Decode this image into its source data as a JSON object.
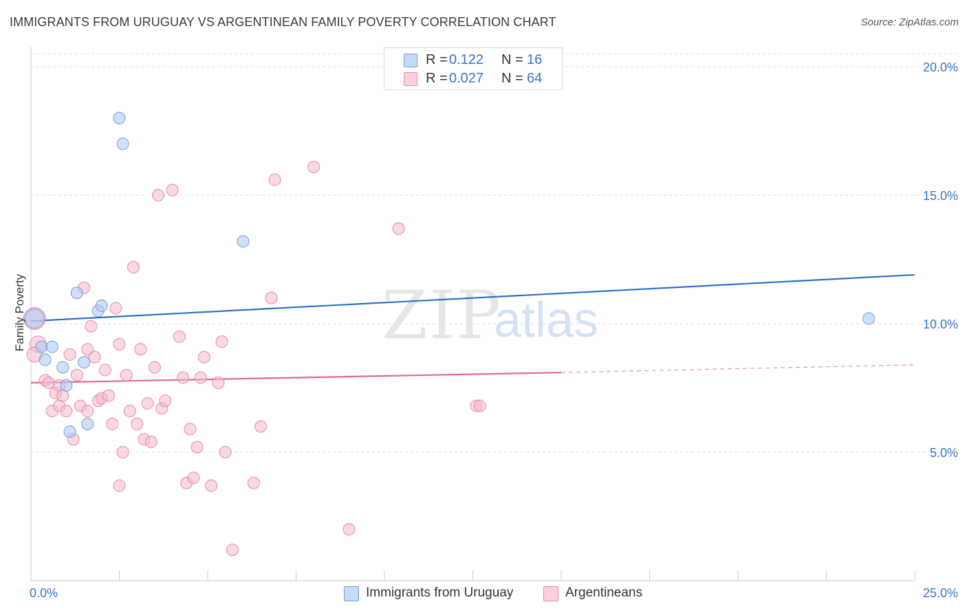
{
  "title": "IMMIGRANTS FROM URUGUAY VS ARGENTINEAN FAMILY POVERTY CORRELATION CHART",
  "source": "Source: ZipAtlas.com",
  "watermark": {
    "zip": "ZIP",
    "atlas": "atlas"
  },
  "legend": {
    "r_label": "R =",
    "n_label": "N =",
    "rows": [
      {
        "r": "0.122",
        "n": "16",
        "color": "#aac8f0"
      },
      {
        "r": "0.027",
        "n": "64",
        "color": "#f7b8cc"
      }
    ]
  },
  "bottom_legend": [
    {
      "label": "Immigrants from Uruguay",
      "color": "#aac8f0"
    },
    {
      "label": "Argentineans",
      "color": "#f7b8cc"
    }
  ],
  "chart_data": {
    "type": "scatter",
    "title": "IMMIGRANTS FROM URUGUAY VS ARGENTINEAN FAMILY POVERTY CORRELATION CHART",
    "xlabel": "",
    "ylabel": "Family Poverty",
    "xlim": [
      0,
      25
    ],
    "ylim": [
      0,
      20
    ],
    "x_tick_labels": [
      "0.0%",
      "25.0%"
    ],
    "y_ticks": [
      5,
      10,
      15,
      20
    ],
    "y_tick_labels": [
      "5.0%",
      "10.0%",
      "15.0%",
      "20.0%"
    ],
    "grid": true,
    "series": [
      {
        "name": "Immigrants from Uruguay",
        "color": "#aac8f0",
        "edge": "#6f9fdc",
        "line_color": "#2e6fce",
        "trend": {
          "x": [
            0,
            25
          ],
          "y": [
            10.1,
            11.9
          ]
        },
        "points": [
          {
            "x": 0.1,
            "y": 10.2,
            "s": 14
          },
          {
            "x": 0.3,
            "y": 9.1
          },
          {
            "x": 0.4,
            "y": 8.6
          },
          {
            "x": 0.6,
            "y": 9.1
          },
          {
            "x": 0.9,
            "y": 8.3
          },
          {
            "x": 1.0,
            "y": 7.6
          },
          {
            "x": 1.1,
            "y": 5.8
          },
          {
            "x": 1.3,
            "y": 11.2
          },
          {
            "x": 1.5,
            "y": 8.5
          },
          {
            "x": 1.6,
            "y": 6.1
          },
          {
            "x": 1.9,
            "y": 10.5
          },
          {
            "x": 2.0,
            "y": 10.7
          },
          {
            "x": 2.5,
            "y": 18.0
          },
          {
            "x": 2.6,
            "y": 17.0
          },
          {
            "x": 6.0,
            "y": 13.2
          },
          {
            "x": 23.7,
            "y": 10.2
          }
        ]
      },
      {
        "name": "Argentineans",
        "color": "#f7b8cc",
        "edge": "#e58aa8",
        "line_color": "#e06890",
        "trend": {
          "x": [
            0,
            15
          ],
          "y": [
            7.7,
            8.1
          ]
        },
        "trend_dashed": {
          "x": [
            15,
            25
          ],
          "y": [
            8.1,
            8.4
          ]
        },
        "points": [
          {
            "x": 0.1,
            "y": 10.2,
            "s": 16
          },
          {
            "x": 0.2,
            "y": 9.2,
            "s": 12
          },
          {
            "x": 0.1,
            "y": 8.8,
            "s": 11
          },
          {
            "x": 0.4,
            "y": 7.8
          },
          {
            "x": 0.5,
            "y": 7.7
          },
          {
            "x": 0.6,
            "y": 6.6
          },
          {
            "x": 0.7,
            "y": 7.3
          },
          {
            "x": 0.8,
            "y": 6.8
          },
          {
            "x": 0.8,
            "y": 7.6
          },
          {
            "x": 0.9,
            "y": 7.2
          },
          {
            "x": 1.0,
            "y": 6.6
          },
          {
            "x": 1.1,
            "y": 8.8
          },
          {
            "x": 1.2,
            "y": 5.5
          },
          {
            "x": 1.3,
            "y": 8.0
          },
          {
            "x": 1.4,
            "y": 6.8
          },
          {
            "x": 1.5,
            "y": 11.4
          },
          {
            "x": 1.6,
            "y": 6.6
          },
          {
            "x": 1.6,
            "y": 9.0
          },
          {
            "x": 1.7,
            "y": 9.9
          },
          {
            "x": 1.8,
            "y": 8.7
          },
          {
            "x": 1.9,
            "y": 7.0
          },
          {
            "x": 2.0,
            "y": 7.1
          },
          {
            "x": 2.1,
            "y": 8.2
          },
          {
            "x": 2.2,
            "y": 7.2
          },
          {
            "x": 2.3,
            "y": 6.1
          },
          {
            "x": 2.4,
            "y": 10.6
          },
          {
            "x": 2.5,
            "y": 3.7
          },
          {
            "x": 2.5,
            "y": 9.2
          },
          {
            "x": 2.6,
            "y": 5.0
          },
          {
            "x": 2.7,
            "y": 8.0
          },
          {
            "x": 2.8,
            "y": 6.6
          },
          {
            "x": 2.9,
            "y": 12.2
          },
          {
            "x": 3.0,
            "y": 6.1
          },
          {
            "x": 3.1,
            "y": 9.0
          },
          {
            "x": 3.2,
            "y": 5.5
          },
          {
            "x": 3.3,
            "y": 6.9
          },
          {
            "x": 3.4,
            "y": 5.4
          },
          {
            "x": 3.5,
            "y": 8.3
          },
          {
            "x": 3.6,
            "y": 15.0
          },
          {
            "x": 3.7,
            "y": 6.7
          },
          {
            "x": 3.8,
            "y": 7.0
          },
          {
            "x": 4.0,
            "y": 15.2
          },
          {
            "x": 4.2,
            "y": 9.5
          },
          {
            "x": 4.3,
            "y": 7.9
          },
          {
            "x": 4.4,
            "y": 3.8
          },
          {
            "x": 4.5,
            "y": 5.9
          },
          {
            "x": 4.6,
            "y": 4.0
          },
          {
            "x": 4.7,
            "y": 5.2
          },
          {
            "x": 4.8,
            "y": 7.9
          },
          {
            "x": 4.9,
            "y": 8.7
          },
          {
            "x": 5.1,
            "y": 3.7
          },
          {
            "x": 5.3,
            "y": 7.7
          },
          {
            "x": 5.4,
            "y": 9.3
          },
          {
            "x": 5.5,
            "y": 5.0
          },
          {
            "x": 5.7,
            "y": 1.2
          },
          {
            "x": 6.3,
            "y": 3.8
          },
          {
            "x": 6.5,
            "y": 6.0
          },
          {
            "x": 6.8,
            "y": 11.0
          },
          {
            "x": 6.9,
            "y": 15.6
          },
          {
            "x": 8.0,
            "y": 16.1
          },
          {
            "x": 9.0,
            "y": 2.0
          },
          {
            "x": 10.4,
            "y": 13.7
          },
          {
            "x": 12.6,
            "y": 6.8
          },
          {
            "x": 12.7,
            "y": 6.8
          }
        ]
      }
    ]
  }
}
